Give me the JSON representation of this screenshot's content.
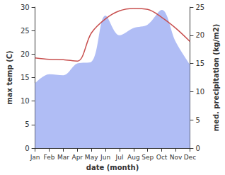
{
  "chart_data": {
    "type": "line",
    "x_label": "date (month)",
    "y_label": "max temp (C)",
    "y2_label": "med. precipitation (kg/m2)",
    "categories": [
      "Jan",
      "Feb",
      "Mar",
      "Apr",
      "May",
      "Jun",
      "Jul",
      "Aug",
      "Sep",
      "Oct",
      "Nov",
      "Dec"
    ],
    "series": [
      {
        "name": "med. precipitation",
        "type": "area",
        "axis": "y2",
        "color": "#b0bdf5",
        "values": [
          11.5,
          13.1,
          12.9,
          15,
          15.3,
          23.5,
          20,
          21.3,
          21.9,
          24.5,
          18.8,
          14.8
        ]
      },
      {
        "name": "max temp",
        "type": "line",
        "color": "#c8504f",
        "values": [
          19.2,
          18.9,
          18.8,
          18.5,
          24.5,
          27.5,
          29.2,
          29.7,
          29.5,
          27.8,
          25.5,
          22.7
        ]
      }
    ],
    "ylim": [
      0,
      30
    ],
    "yticks": [
      0,
      5,
      10,
      15,
      20,
      25,
      30
    ],
    "y2lim": [
      0,
      25
    ],
    "y2ticks": [
      0,
      5,
      10,
      15,
      20,
      25
    ],
    "grid": false
  }
}
